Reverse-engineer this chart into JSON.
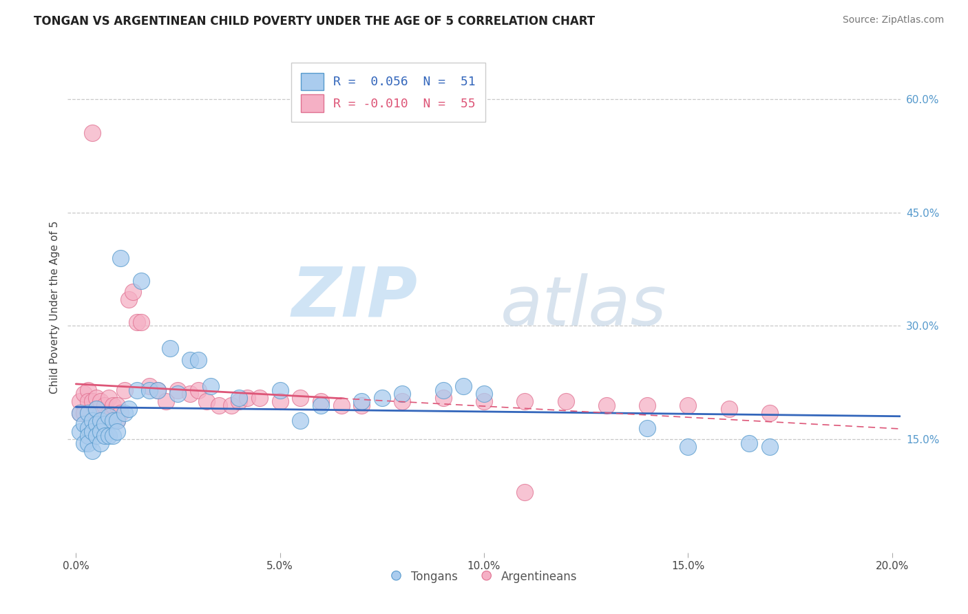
{
  "title": "TONGAN VS ARGENTINEAN CHILD POVERTY UNDER THE AGE OF 5 CORRELATION CHART",
  "source": "Source: ZipAtlas.com",
  "ylabel": "Child Poverty Under the Age of 5",
  "xlim": [
    -0.002,
    0.202
  ],
  "ylim": [
    0.0,
    0.65
  ],
  "xticks": [
    0.0,
    0.05,
    0.1,
    0.15,
    0.2
  ],
  "xticklabels": [
    "0.0%",
    "5.0%",
    "10.0%",
    "15.0%",
    "20.0%"
  ],
  "yticks_right": [
    0.15,
    0.3,
    0.45,
    0.6
  ],
  "yticklabels_right": [
    "15.0%",
    "30.0%",
    "45.0%",
    "60.0%"
  ],
  "grid_color": "#c8c8c8",
  "background_color": "#ffffff",
  "tongan_color": "#aaccee",
  "argentinean_color": "#f5b0c5",
  "tongan_edge_color": "#5599cc",
  "argentinean_edge_color": "#e07090",
  "tongan_line_color": "#3366bb",
  "argentinean_line_color": "#dd5577",
  "tongan_R": 0.056,
  "tongan_N": 51,
  "argentinean_R": -0.01,
  "argentinean_N": 55,
  "watermark_zip": "ZIP",
  "watermark_atlas": "atlas",
  "tongan_x": [
    0.001,
    0.001,
    0.002,
    0.002,
    0.003,
    0.003,
    0.003,
    0.003,
    0.004,
    0.004,
    0.004,
    0.005,
    0.005,
    0.005,
    0.006,
    0.006,
    0.006,
    0.007,
    0.007,
    0.008,
    0.008,
    0.009,
    0.009,
    0.01,
    0.01,
    0.011,
    0.012,
    0.013,
    0.015,
    0.016,
    0.018,
    0.02,
    0.023,
    0.025,
    0.028,
    0.03,
    0.033,
    0.04,
    0.05,
    0.055,
    0.06,
    0.07,
    0.075,
    0.08,
    0.09,
    0.095,
    0.1,
    0.14,
    0.15,
    0.165,
    0.17
  ],
  "tongan_y": [
    0.185,
    0.16,
    0.17,
    0.145,
    0.185,
    0.165,
    0.155,
    0.145,
    0.175,
    0.16,
    0.135,
    0.19,
    0.17,
    0.155,
    0.175,
    0.16,
    0.145,
    0.17,
    0.155,
    0.18,
    0.155,
    0.175,
    0.155,
    0.175,
    0.16,
    0.39,
    0.185,
    0.19,
    0.215,
    0.36,
    0.215,
    0.215,
    0.27,
    0.21,
    0.255,
    0.255,
    0.22,
    0.205,
    0.215,
    0.175,
    0.195,
    0.2,
    0.205,
    0.21,
    0.215,
    0.22,
    0.21,
    0.165,
    0.14,
    0.145,
    0.14
  ],
  "argentinean_x": [
    0.001,
    0.001,
    0.002,
    0.002,
    0.003,
    0.003,
    0.003,
    0.004,
    0.004,
    0.005,
    0.005,
    0.005,
    0.006,
    0.006,
    0.007,
    0.007,
    0.008,
    0.008,
    0.009,
    0.01,
    0.01,
    0.011,
    0.012,
    0.013,
    0.014,
    0.015,
    0.016,
    0.018,
    0.02,
    0.022,
    0.025,
    0.028,
    0.03,
    0.032,
    0.035,
    0.038,
    0.04,
    0.042,
    0.045,
    0.05,
    0.055,
    0.06,
    0.065,
    0.07,
    0.08,
    0.09,
    0.1,
    0.11,
    0.12,
    0.13,
    0.14,
    0.15,
    0.16,
    0.17,
    0.11
  ],
  "argentinean_y": [
    0.2,
    0.185,
    0.21,
    0.185,
    0.215,
    0.2,
    0.185,
    0.555,
    0.2,
    0.205,
    0.19,
    0.175,
    0.2,
    0.185,
    0.195,
    0.175,
    0.205,
    0.185,
    0.195,
    0.195,
    0.175,
    0.185,
    0.215,
    0.335,
    0.345,
    0.305,
    0.305,
    0.22,
    0.215,
    0.2,
    0.215,
    0.21,
    0.215,
    0.2,
    0.195,
    0.195,
    0.2,
    0.205,
    0.205,
    0.2,
    0.205,
    0.2,
    0.195,
    0.195,
    0.2,
    0.205,
    0.2,
    0.2,
    0.2,
    0.195,
    0.195,
    0.195,
    0.19,
    0.185,
    0.08
  ]
}
